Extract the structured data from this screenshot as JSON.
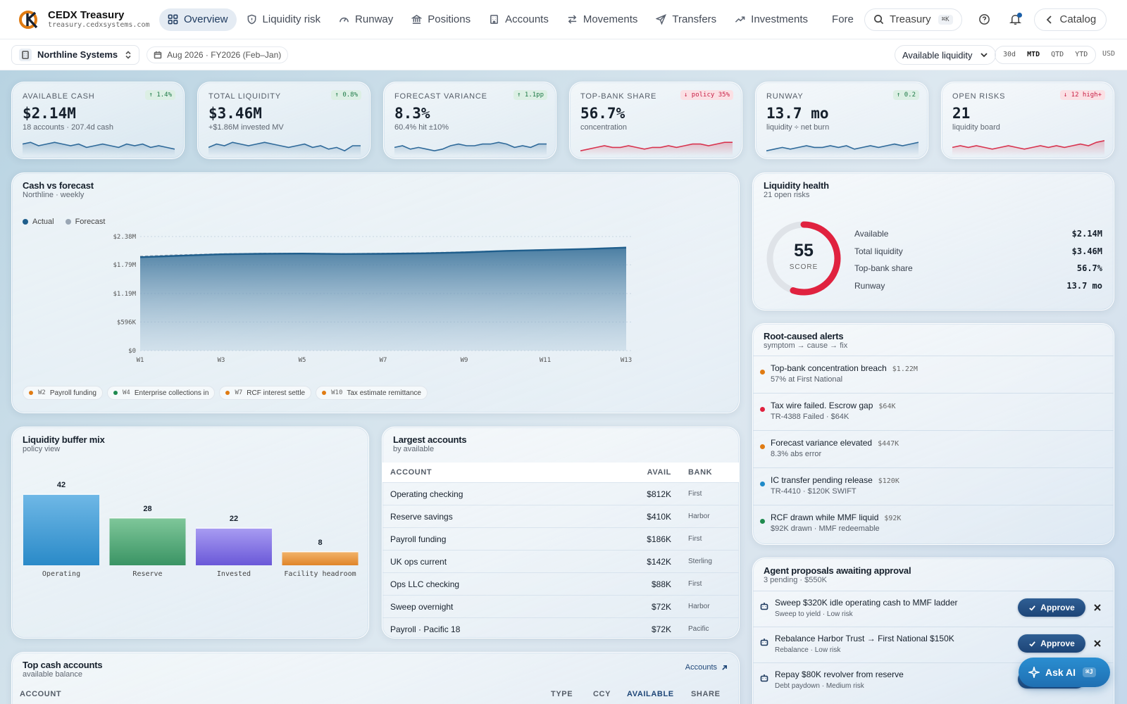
{
  "brand": {
    "name": "CEDX Treasury",
    "url": "treasury.cedxsystems.com"
  },
  "nav": [
    {
      "label": "Overview",
      "icon": "grid-icon",
      "active": true
    },
    {
      "label": "Liquidity risk",
      "icon": "shield-icon"
    },
    {
      "label": "Runway",
      "icon": "gauge-icon"
    },
    {
      "label": "Positions",
      "icon": "bank-icon"
    },
    {
      "label": "Accounts",
      "icon": "building-icon"
    },
    {
      "label": "Movements",
      "icon": "arrows-icon"
    },
    {
      "label": "Transfers",
      "icon": "send-icon"
    },
    {
      "label": "Investments",
      "icon": "trend-icon"
    },
    {
      "label": "Fore",
      "icon": "pulse-icon"
    }
  ],
  "search": {
    "label": "Treasury",
    "shortcut": "⌘K"
  },
  "catalog_label": "Catalog",
  "subbar": {
    "entity": "Northline Systems",
    "period": "Aug 2026 · FY2026 (Feb–Jan)",
    "metric": "Available liquidity",
    "ranges": [
      "30d",
      "MTD",
      "QTD",
      "YTD"
    ],
    "active_range": "MTD",
    "currency": "USD"
  },
  "kpis": [
    {
      "label": "Available cash",
      "delta": "↑ 1.4%",
      "dir": "up",
      "value": "$2.14M",
      "sub": "18 accounts · 207.4d cash",
      "color": "#2f6a9a",
      "spark": [
        6,
        7,
        5,
        6,
        7,
        6,
        5,
        6,
        4,
        5,
        6,
        5,
        4,
        6,
        5,
        6,
        4,
        5,
        4,
        3
      ]
    },
    {
      "label": "Total liquidity",
      "delta": "↑ 0.8%",
      "dir": "up",
      "value": "$3.46M",
      "sub": "+$1.86M invested MV",
      "color": "#2f6a9a",
      "spark": [
        4,
        6,
        5,
        7,
        6,
        5,
        6,
        7,
        6,
        5,
        4,
        5,
        6,
        4,
        5,
        3,
        4,
        2,
        5,
        5
      ]
    },
    {
      "label": "Forecast variance",
      "delta": "↑ 1.1pp",
      "dir": "up",
      "value": "8.3%",
      "sub": "60.4% hit ±10%",
      "color": "#2f6a9a",
      "spark": [
        4,
        5,
        3,
        4,
        3,
        2,
        3,
        5,
        6,
        5,
        5,
        6,
        6,
        7,
        6,
        4,
        5,
        4,
        6,
        6
      ]
    },
    {
      "label": "Top-bank share",
      "delta": "↓ policy 35%",
      "dir": "down",
      "value": "56.7%",
      "sub": "concentration",
      "color": "#d8344f",
      "spark": [
        2,
        3,
        4,
        5,
        4,
        4,
        5,
        4,
        3,
        4,
        4,
        5,
        4,
        5,
        6,
        6,
        5,
        6,
        7,
        7
      ]
    },
    {
      "label": "Runway",
      "delta": "↑ 0.2",
      "dir": "up",
      "value": "13.7 mo",
      "sub": "liquidity ÷ net burn",
      "color": "#2f6a9a",
      "spark": [
        2,
        3,
        4,
        3,
        4,
        5,
        4,
        4,
        5,
        4,
        5,
        3,
        4,
        5,
        4,
        5,
        6,
        5,
        6,
        7
      ]
    },
    {
      "label": "Open risks",
      "delta": "↓ 12 high+",
      "dir": "down",
      "value": "21",
      "sub": "liquidity board",
      "color": "#d8344f",
      "spark": [
        4,
        5,
        4,
        5,
        4,
        3,
        4,
        5,
        4,
        3,
        4,
        5,
        4,
        5,
        4,
        5,
        6,
        5,
        7,
        8
      ]
    }
  ],
  "cash_card": {
    "title": "Cash vs forecast",
    "subtitle": "Northline · weekly"
  },
  "chart_data": {
    "type": "area",
    "x": [
      "W1",
      "W2",
      "W3",
      "W4",
      "W5",
      "W6",
      "W7",
      "W8",
      "W9",
      "W10",
      "W11",
      "W12",
      "W13"
    ],
    "x_tick_labels": [
      "W1",
      "W3",
      "W5",
      "W7",
      "W9",
      "W11",
      "W13"
    ],
    "ylim": [
      0,
      2380000
    ],
    "y_tick_labels": [
      "$0",
      "$596K",
      "$1.19M",
      "$1.79M",
      "$2.38M"
    ],
    "y_tick_values": [
      0,
      596000,
      1190000,
      1790000,
      2380000
    ],
    "series": [
      {
        "name": "Actual",
        "color": "#1f5e8c",
        "values": [
          1950000,
          1980000,
          2010000,
          2020000,
          2025000,
          2015000,
          2020000,
          2030000,
          2050000,
          2080000,
          2100000,
          2120000,
          2150000
        ]
      },
      {
        "name": "Forecast",
        "color": "#9aa6b4",
        "values": [
          1970000,
          2000000,
          2020000,
          2030000,
          2030000,
          2025000,
          2030000,
          2040000,
          2060000,
          2085000,
          2105000,
          2125000,
          2155000
        ]
      }
    ],
    "grid": true,
    "legend": "top-left"
  },
  "events": [
    {
      "week": "W2",
      "label": "Payroll funding",
      "color": "#e07b12"
    },
    {
      "week": "W4",
      "label": "Enterprise collections in",
      "color": "#1e8a4e"
    },
    {
      "week": "W7",
      "label": "RCF interest settle",
      "color": "#e07b12"
    },
    {
      "week": "W10",
      "label": "Tax estimate remittance",
      "color": "#e07b12"
    }
  ],
  "health": {
    "title": "Liquidity health",
    "subtitle": "21 open risks",
    "score": 55,
    "score_label": "SCORE",
    "score_max": 100,
    "rows": [
      {
        "label": "Available",
        "value": "$2.14M"
      },
      {
        "label": "Total liquidity",
        "value": "$3.46M"
      },
      {
        "label": "Top-bank share",
        "value": "56.7%"
      },
      {
        "label": "Runway",
        "value": "13.7 mo"
      }
    ]
  },
  "alerts": {
    "title": "Root-caused alerts",
    "subtitle": "symptom → cause → fix",
    "items": [
      {
        "title": "Top-bank concentration breach",
        "amount": "$1.22M",
        "sub": "57% at First National",
        "color": "#e07b12"
      },
      {
        "title": "Tax wire failed. Escrow gap",
        "amount": "$64K",
        "sub": "TR-4388 Failed · $64K",
        "color": "#e0223f"
      },
      {
        "title": "Forecast variance elevated",
        "amount": "$447K",
        "sub": "8.3% abs error",
        "color": "#e07b12"
      },
      {
        "title": "IC transfer pending release",
        "amount": "$120K",
        "sub": "TR-4410 · $120K SWIFT",
        "color": "#1f8ac8"
      },
      {
        "title": "RCF drawn while MMF liquid",
        "amount": "$92K",
        "sub": "$92K drawn · MMF redeemable",
        "color": "#1e8a4e"
      }
    ]
  },
  "buffer": {
    "title": "Liquidity buffer mix",
    "subtitle": "policy view",
    "bars": [
      {
        "label": "Operating",
        "value": 42,
        "color1": "#6fb8e6",
        "color2": "#2a8ac8"
      },
      {
        "label": "Reserve",
        "value": 28,
        "color1": "#7fc79a",
        "color2": "#3a9464"
      },
      {
        "label": "Invested",
        "value": 22,
        "color1": "#a89cf2",
        "color2": "#6a58d8"
      },
      {
        "label": "Facility headroom",
        "value": 8,
        "color1": "#f2b36a",
        "color2": "#e0852a"
      }
    ]
  },
  "largest": {
    "title": "Largest accounts",
    "subtitle": "by available",
    "headers": {
      "account": "ACCOUNT",
      "avail": "AVAIL",
      "bank": "BANK"
    },
    "rows": [
      {
        "account": "Operating checking",
        "avail": "$812K",
        "bank": "First"
      },
      {
        "account": "Reserve savings",
        "avail": "$410K",
        "bank": "Harbor"
      },
      {
        "account": "Payroll funding",
        "avail": "$186K",
        "bank": "First"
      },
      {
        "account": "UK ops current",
        "avail": "$142K",
        "bank": "Sterling"
      },
      {
        "account": "Ops LLC checking",
        "avail": "$88K",
        "bank": "First"
      },
      {
        "account": "Sweep overnight",
        "avail": "$72K",
        "bank": "Harbor"
      },
      {
        "account": "Payroll · Pacific 18",
        "avail": "$72K",
        "bank": "Pacific"
      }
    ]
  },
  "proposals": {
    "title": "Agent proposals awaiting approval",
    "subtitle": "3 pending · $550K",
    "approve_label": "Approve",
    "items": [
      {
        "title": "Sweep $320K idle operating cash to MMF ladder",
        "sub": "Sweep to yield · Low risk"
      },
      {
        "title": "Rebalance Harbor Trust → First National $150K",
        "sub": "Rebalance · Low risk"
      },
      {
        "title": "Repay $80K revolver from reserve",
        "sub": "Debt paydown · Medium risk"
      }
    ]
  },
  "top_cash": {
    "title": "Top cash accounts",
    "subtitle": "available balance",
    "link": "Accounts",
    "headers": {
      "account": "ACCOUNT",
      "type": "TYPE",
      "ccy": "CCY",
      "available": "AVAILABLE",
      "share": "SHARE"
    }
  },
  "ask_ai": {
    "label": "Ask AI",
    "shortcut": "⌘J"
  }
}
